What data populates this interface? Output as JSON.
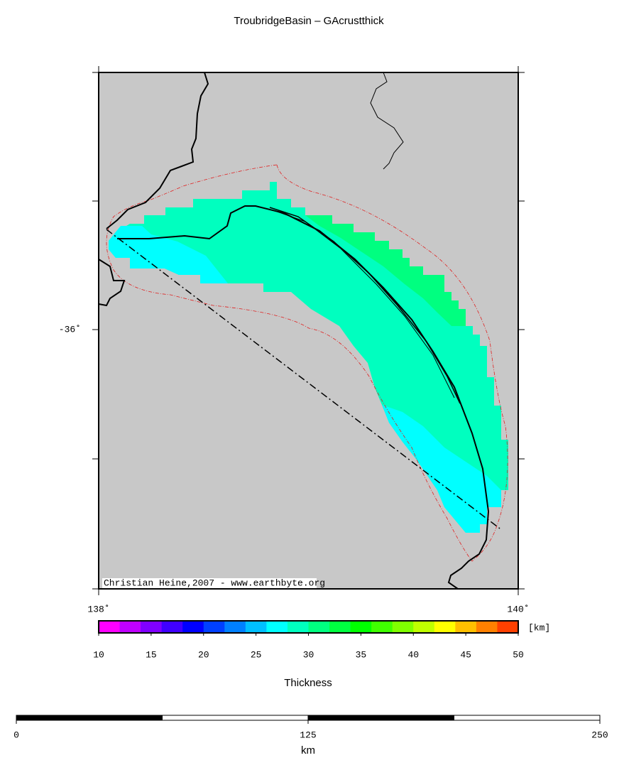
{
  "title": "TroubridgeBasin – GAcrustthick",
  "map": {
    "credit": "Christian Heine,2007 - www.earthbyte.org",
    "lat_labels": [
      "-36˚"
    ],
    "lon_labels": [
      "138˚",
      "140˚"
    ]
  },
  "colorbar": {
    "range": [
      10,
      50
    ],
    "ticks": [
      10,
      15,
      20,
      25,
      30,
      35,
      40,
      45,
      50
    ],
    "unit": "[km]",
    "label": "Thickness",
    "colors": [
      "#ff00ff",
      "#bf00ff",
      "#8000ff",
      "#4000ff",
      "#0000ff",
      "#0040ff",
      "#0080ff",
      "#00bfff",
      "#00ffff",
      "#00ffbf",
      "#00ff80",
      "#00ff40",
      "#00ff00",
      "#40ff00",
      "#80ff00",
      "#bfff00",
      "#ffff00",
      "#ffbf00",
      "#ff8000",
      "#ff4000"
    ]
  },
  "scalebar": {
    "range": [
      0,
      250
    ],
    "ticks": [
      0,
      125,
      250
    ],
    "unit": "km"
  }
}
